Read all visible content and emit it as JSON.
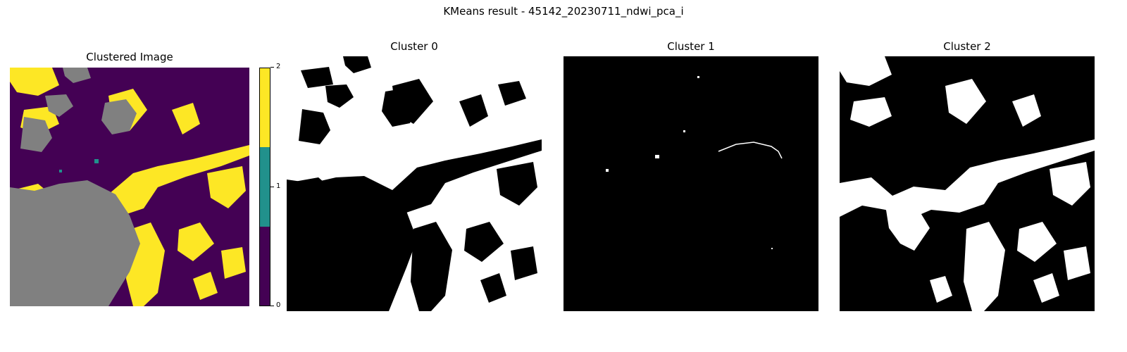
{
  "figure": {
    "suptitle": "KMeans result - 45142_20230711_ndwi_pca_i"
  },
  "panels": [
    {
      "title": "Clustered Image"
    },
    {
      "title": "Cluster 0"
    },
    {
      "title": "Cluster 1"
    },
    {
      "title": "Cluster 2"
    }
  ],
  "colorbar": {
    "ticks": [
      "0",
      "1",
      "2"
    ],
    "colors": [
      "#440154",
      "#21918c",
      "#fde725"
    ]
  },
  "colors": {
    "cluster_0": "#440154",
    "cluster_1": "#21918c",
    "cluster_2": "#fde725",
    "nodata": "#808080",
    "mask_on": "#ffffff",
    "mask_off": "#000000"
  }
}
